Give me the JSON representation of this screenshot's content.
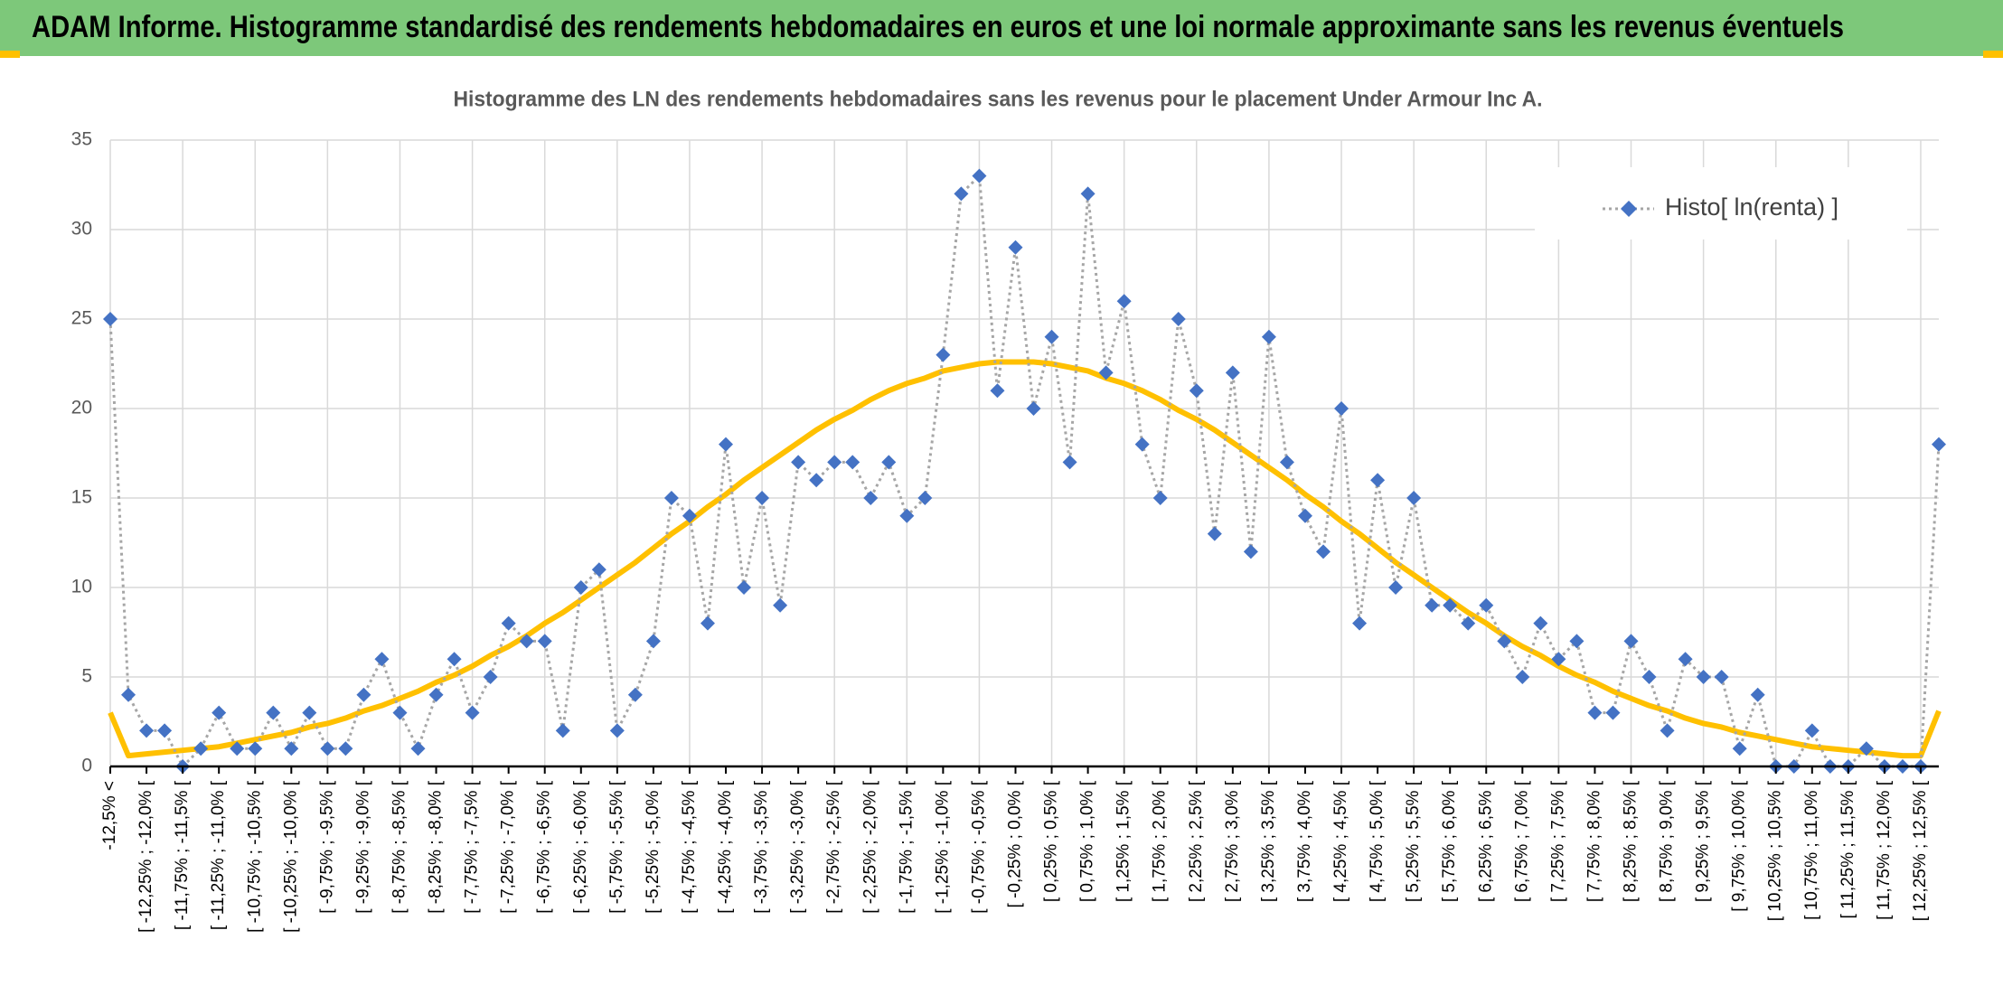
{
  "header": {
    "title": "ADAM Informe. Histogramme standardisé des rendements hebdomadaires en euros et une loi normale approximante sans les revenus éventuels"
  },
  "chart_data": {
    "type": "line",
    "title": "Histogramme des LN des rendements hebdomadaires sans les revenus pour le placement Under Armour Inc A.",
    "categories": [
      "-12,5% <",
      null,
      "[ -12,25% ; -12,0% [",
      null,
      "[ -11,75% ; -11,5% [",
      null,
      "[ -11,25% ; -11,0% [",
      null,
      "[ -10,75% ; -10,5% [",
      null,
      "[ -10,25% ; -10,0% [",
      null,
      "[ -9,75% ; -9,5% [",
      null,
      "[ -9,25% ; -9,0% [",
      null,
      "[ -8,75% ; -8,5% [",
      null,
      "[ -8,25% ; -8,0% [",
      null,
      "[ -7,75% ; -7,5% [",
      null,
      "[ -7,25% ; -7,0% [",
      null,
      "[ -6,75% ; -6,5% [",
      null,
      "[ -6,25% ; -6,0% [",
      null,
      "[ -5,75% ; -5,5% [",
      null,
      "[ -5,25% ; -5,0% [",
      null,
      "[ -4,75% ; -4,5% [",
      null,
      "[ -4,25% ; -4,0% [",
      null,
      "[ -3,75% ; -3,5% [",
      null,
      "[ -3,25% ; -3,0% [",
      null,
      "[ -2,75% ; -2,5% [",
      null,
      "[ -2,25% ; -2,0% [",
      null,
      "[ -1,75% ; -1,5% [",
      null,
      "[ -1,25% ; -1,0% [",
      null,
      "[ -0,75% ; -0,5% [",
      null,
      "[ -0,25% ; 0,0% [",
      null,
      "[ 0,25% ; 0,5% [",
      null,
      "[ 0,75% ; 1,0% [",
      null,
      "[ 1,25% ; 1,5% [",
      null,
      "[ 1,75% ; 2,0% [",
      null,
      "[ 2,25% ; 2,5% [",
      null,
      "[ 2,75% ; 3,0% [",
      null,
      "[ 3,25% ; 3,5% [",
      null,
      "[ 3,75% ; 4,0% [",
      null,
      "[ 4,25% ; 4,5% [",
      null,
      "[ 4,75% ; 5,0% [",
      null,
      "[ 5,25% ; 5,5% [",
      null,
      "[ 5,75% ; 6,0% [",
      null,
      "[ 6,25% ; 6,5% [",
      null,
      "[ 6,75% ; 7,0% [",
      null,
      "[ 7,25% ; 7,5% [",
      null,
      "[ 7,75% ; 8,0% [",
      null,
      "[ 8,25% ; 8,5% [",
      null,
      "[ 8,75% ; 9,0% [",
      null,
      "[ 9,25% ; 9,5% [",
      null,
      "[ 9,75% ; 10,0% [",
      null,
      "[ 10,25% ; 10,5% [",
      null,
      "[ 10,75% ; 11,0% [",
      null,
      "[ 11,25% ; 11,5% [",
      null,
      "[ 11,75% ; 12,0% [",
      null,
      "[ 12,25% ; 12,5% [",
      null
    ],
    "series": [
      {
        "name": "Histo[ ln(renta) ]",
        "color": "#4472c4",
        "line_color": "#a6a6a6",
        "values": [
          25,
          4,
          2,
          2,
          0,
          1,
          3,
          1,
          1,
          3,
          1,
          3,
          1,
          1,
          4,
          6,
          3,
          1,
          4,
          6,
          3,
          5,
          8,
          7,
          7,
          2,
          10,
          11,
          2,
          4,
          7,
          15,
          14,
          8,
          18,
          10,
          15,
          9,
          17,
          16,
          17,
          17,
          15,
          17,
          14,
          15,
          23,
          32,
          33,
          21,
          29,
          20,
          24,
          17,
          32,
          22,
          26,
          18,
          15,
          25,
          21,
          13,
          22,
          12,
          24,
          17,
          14,
          12,
          20,
          8,
          16,
          10,
          15,
          9,
          9,
          8,
          9,
          7,
          5,
          8,
          6,
          7,
          3,
          3,
          7,
          5,
          2,
          6,
          5,
          5,
          1,
          4,
          0,
          0,
          2,
          0,
          0,
          1,
          0,
          0,
          0,
          18
        ]
      },
      {
        "color": "#ffc000",
        "values": [
          3.0,
          0.6,
          0.7,
          0.8,
          0.9,
          1.0,
          1.1,
          1.3,
          1.5,
          1.7,
          1.9,
          2.2,
          2.4,
          2.7,
          3.1,
          3.4,
          3.8,
          4.2,
          4.7,
          5.1,
          5.6,
          6.2,
          6.7,
          7.3,
          8.0,
          8.6,
          9.3,
          10.0,
          10.7,
          11.4,
          12.2,
          13.0,
          13.7,
          14.5,
          15.2,
          16.0,
          16.7,
          17.4,
          18.1,
          18.8,
          19.4,
          19.9,
          20.5,
          21.0,
          21.4,
          21.7,
          22.1,
          22.3,
          22.5,
          22.6,
          22.6,
          22.6,
          22.5,
          22.3,
          22.1,
          21.7,
          21.4,
          21.0,
          20.5,
          19.9,
          19.4,
          18.8,
          18.1,
          17.4,
          16.7,
          16.0,
          15.2,
          14.5,
          13.7,
          13.0,
          12.2,
          11.4,
          10.7,
          10.0,
          9.3,
          8.6,
          8.0,
          7.3,
          6.7,
          6.2,
          5.6,
          5.1,
          4.7,
          4.2,
          3.8,
          3.4,
          3.1,
          2.7,
          2.4,
          2.2,
          1.9,
          1.7,
          1.5,
          1.3,
          1.1,
          1.0,
          0.9,
          0.8,
          0.7,
          0.6,
          0.6,
          3.1
        ]
      }
    ],
    "ylim": [
      0,
      35
    ],
    "yticks": [
      0,
      5,
      10,
      15,
      20,
      25,
      30,
      35
    ],
    "grid": true,
    "legend": "top-right"
  }
}
